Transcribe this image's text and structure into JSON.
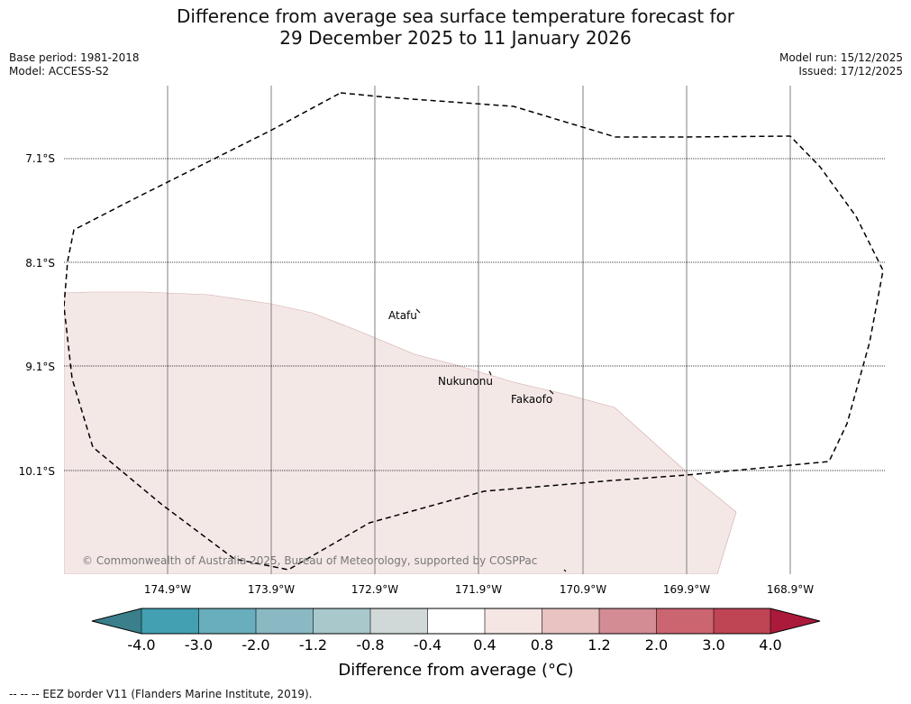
{
  "header": {
    "title_line1": "Difference from average sea surface temperature forecast for",
    "title_line2": "29 December 2025 to 11 January 2026",
    "base_period": "Base period: 1981-2018",
    "model": "Model: ACCESS-S2",
    "model_run": "Model run: 15/12/2025",
    "issued": "Issued: 17/12/2025"
  },
  "map": {
    "lat_labels": [
      "7.1°S",
      "8.1°S",
      "9.1°S",
      "10.1°S"
    ],
    "lon_labels": [
      "174.9°W",
      "173.9°W",
      "172.9°W",
      "171.9°W",
      "170.9°W",
      "169.9°W",
      "168.9°W"
    ],
    "places": [
      "Atafu",
      "Nukunonu",
      "Fakaofo"
    ],
    "copyright": "© Commonwealth of Australia 2025, Bureau of Meteorology, supported by COSPPac",
    "shade_color": "#f4e8e7",
    "eez_color": "#000000"
  },
  "colorbar": {
    "ticks": [
      "-4.0",
      "-3.0",
      "-2.0",
      "-1.2",
      "-0.8",
      "-0.4",
      "0.4",
      "0.8",
      "1.2",
      "2.0",
      "3.0",
      "4.0"
    ],
    "colors": [
      "#3a7f8b",
      "#42a0b2",
      "#68aebc",
      "#8ab9c3",
      "#a8c8cc",
      "#d0d9d8",
      "#ffffff",
      "#f5e5e3",
      "#e8c3c1",
      "#d48c94",
      "#cb6570",
      "#bf4454",
      "#ab1a3a"
    ],
    "label": "Difference from average (°C)"
  },
  "footer": {
    "legend": "--  --  -- EEZ border V11 (Flanders Marine Institute, 2019)."
  }
}
